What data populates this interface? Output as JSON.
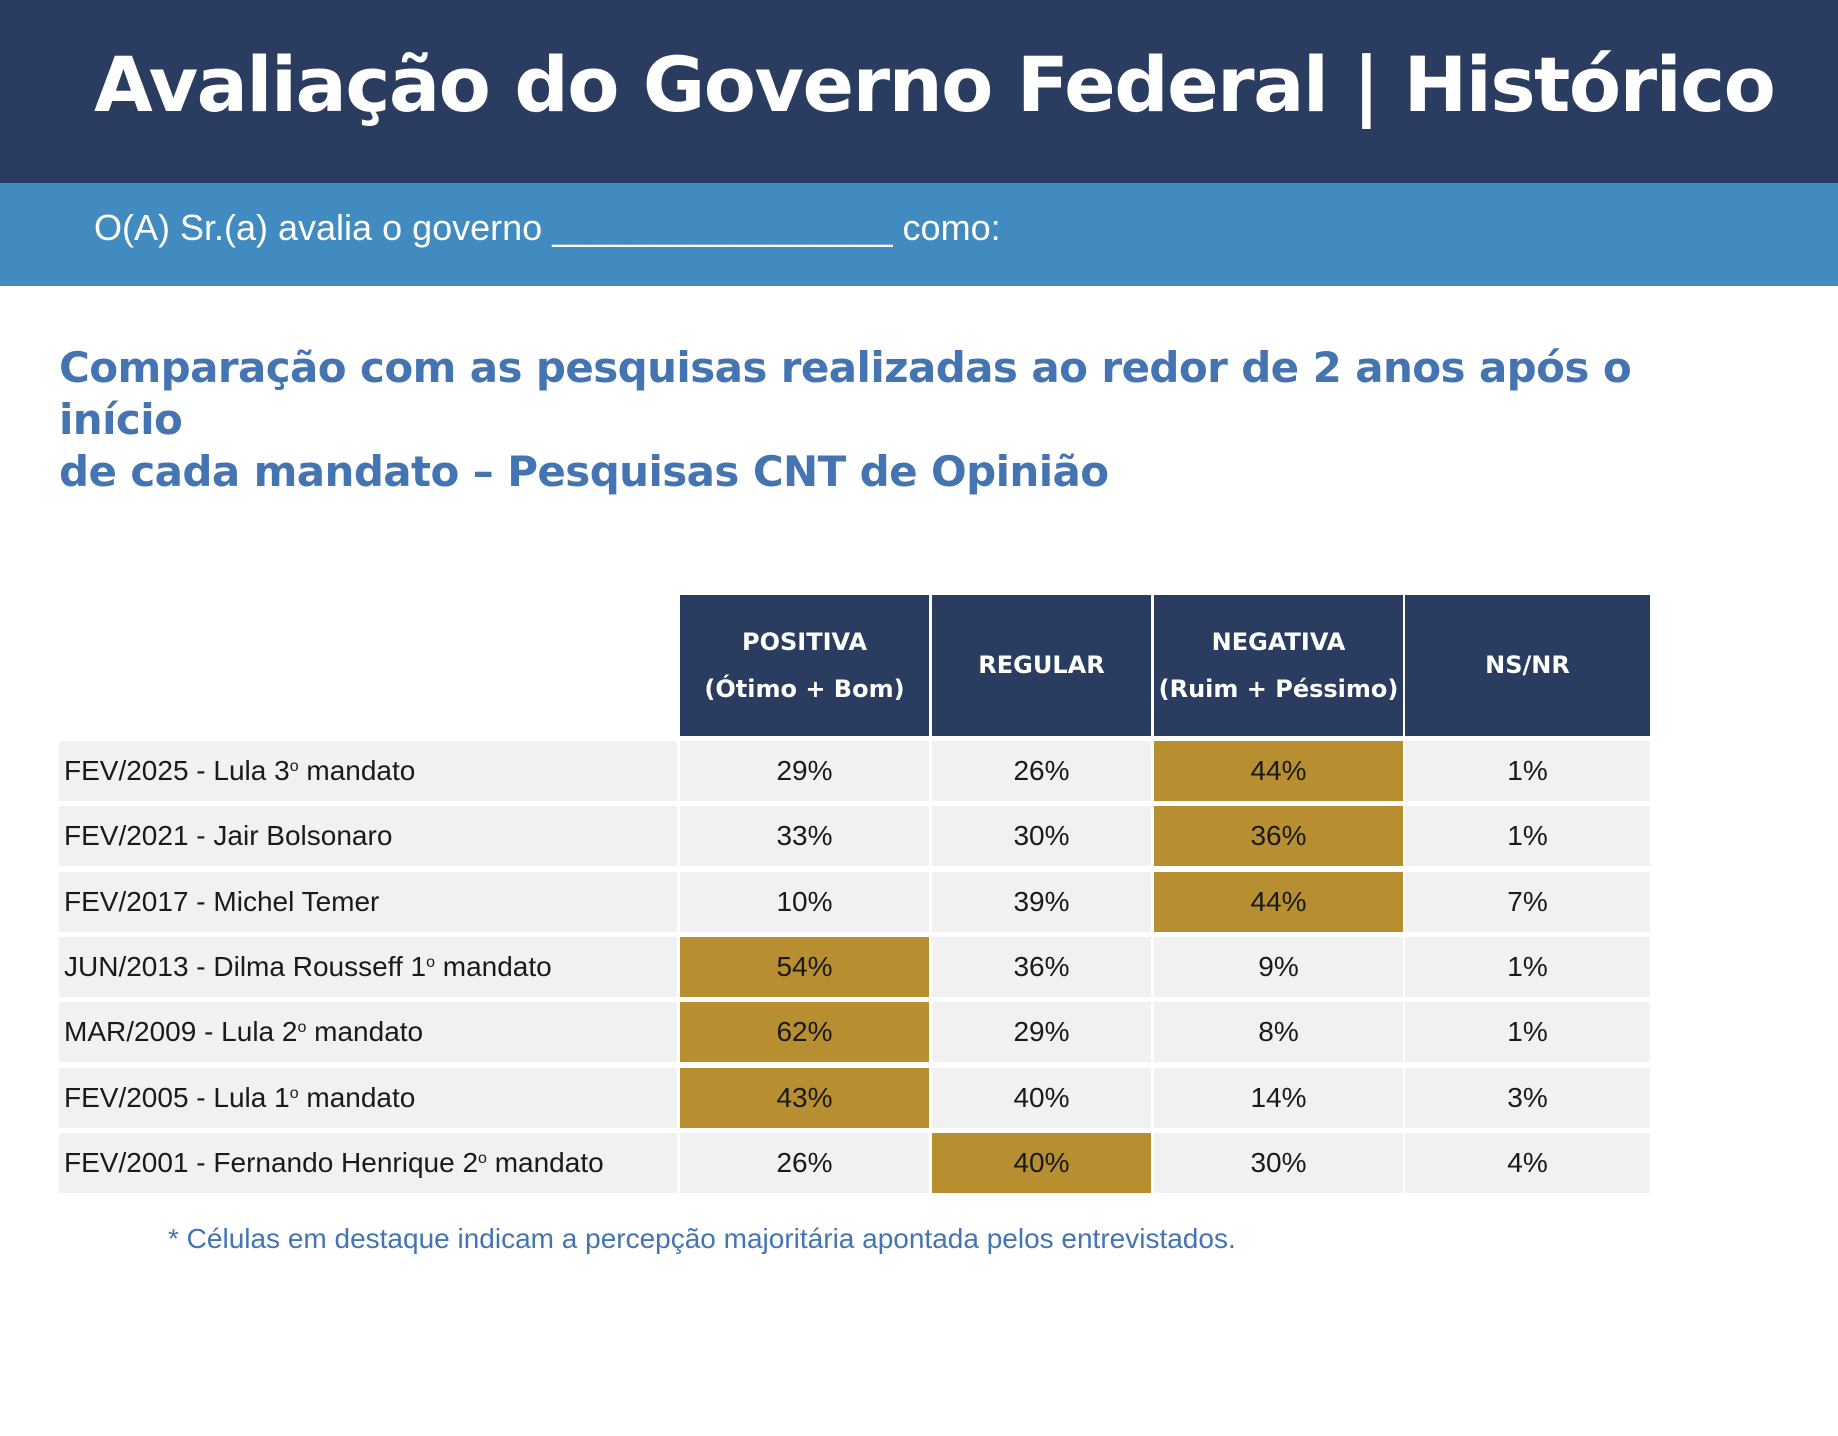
{
  "header": {
    "title": "Avaliação do Governo Federal | Histórico",
    "question": "O(A) Sr.(a) avalia o governo _________________ como:"
  },
  "section": {
    "heading_line1": "Comparação com as pesquisas realizadas ao redor de 2 anos após o início",
    "heading_line2": "de cada mandato – Pesquisas CNT de Opinião"
  },
  "table": {
    "columns": [
      {
        "line1": "POSITIVA",
        "line2": "(Ótimo + Bom)"
      },
      {
        "line1": "REGULAR",
        "line2": ""
      },
      {
        "line1": "NEGATIVA",
        "line2": "(Ruim + Péssimo)"
      },
      {
        "line1": "NS/NR",
        "line2": ""
      }
    ],
    "rows": [
      {
        "label_pre": "FEV/2025 - Lula 3",
        "ordinal": "o",
        "label_post": " mandato",
        "values": [
          "29%",
          "26%",
          "44%",
          "1%"
        ],
        "highlight": 2
      },
      {
        "label_pre": "FEV/2021 - Jair Bolsonaro",
        "ordinal": "",
        "label_post": "",
        "values": [
          "33%",
          "30%",
          "36%",
          "1%"
        ],
        "highlight": 2
      },
      {
        "label_pre": "FEV/2017 - Michel Temer",
        "ordinal": "",
        "label_post": "",
        "values": [
          "10%",
          "39%",
          "44%",
          "7%"
        ],
        "highlight": 2
      },
      {
        "label_pre": "JUN/2013 - Dilma Rousseff 1",
        "ordinal": "o",
        "label_post": " mandato",
        "values": [
          "54%",
          "36%",
          "9%",
          "1%"
        ],
        "highlight": 0
      },
      {
        "label_pre": "MAR/2009 - Lula 2",
        "ordinal": "o",
        "label_post": " mandato",
        "values": [
          "62%",
          "29%",
          "8%",
          "1%"
        ],
        "highlight": 0
      },
      {
        "label_pre": "FEV/2005 - Lula 1",
        "ordinal": "o",
        "label_post": " mandato",
        "values": [
          "43%",
          "40%",
          "14%",
          "3%"
        ],
        "highlight": 0
      },
      {
        "label_pre": "FEV/2001 - Fernando Henrique 2",
        "ordinal": "o",
        "label_post": " mandato",
        "values": [
          "26%",
          "40%",
          "30%",
          "4%"
        ],
        "highlight": 1
      }
    ]
  },
  "colors": {
    "navy": "#2a3d60",
    "blue_band": "#418bc1",
    "heading_blue": "#4475b2",
    "highlight_gold": "#b78f30",
    "row_gray": "#f1f1f1"
  },
  "footnote": "* Células em destaque indicam a percepção majoritária apontada pelos entrevistados."
}
